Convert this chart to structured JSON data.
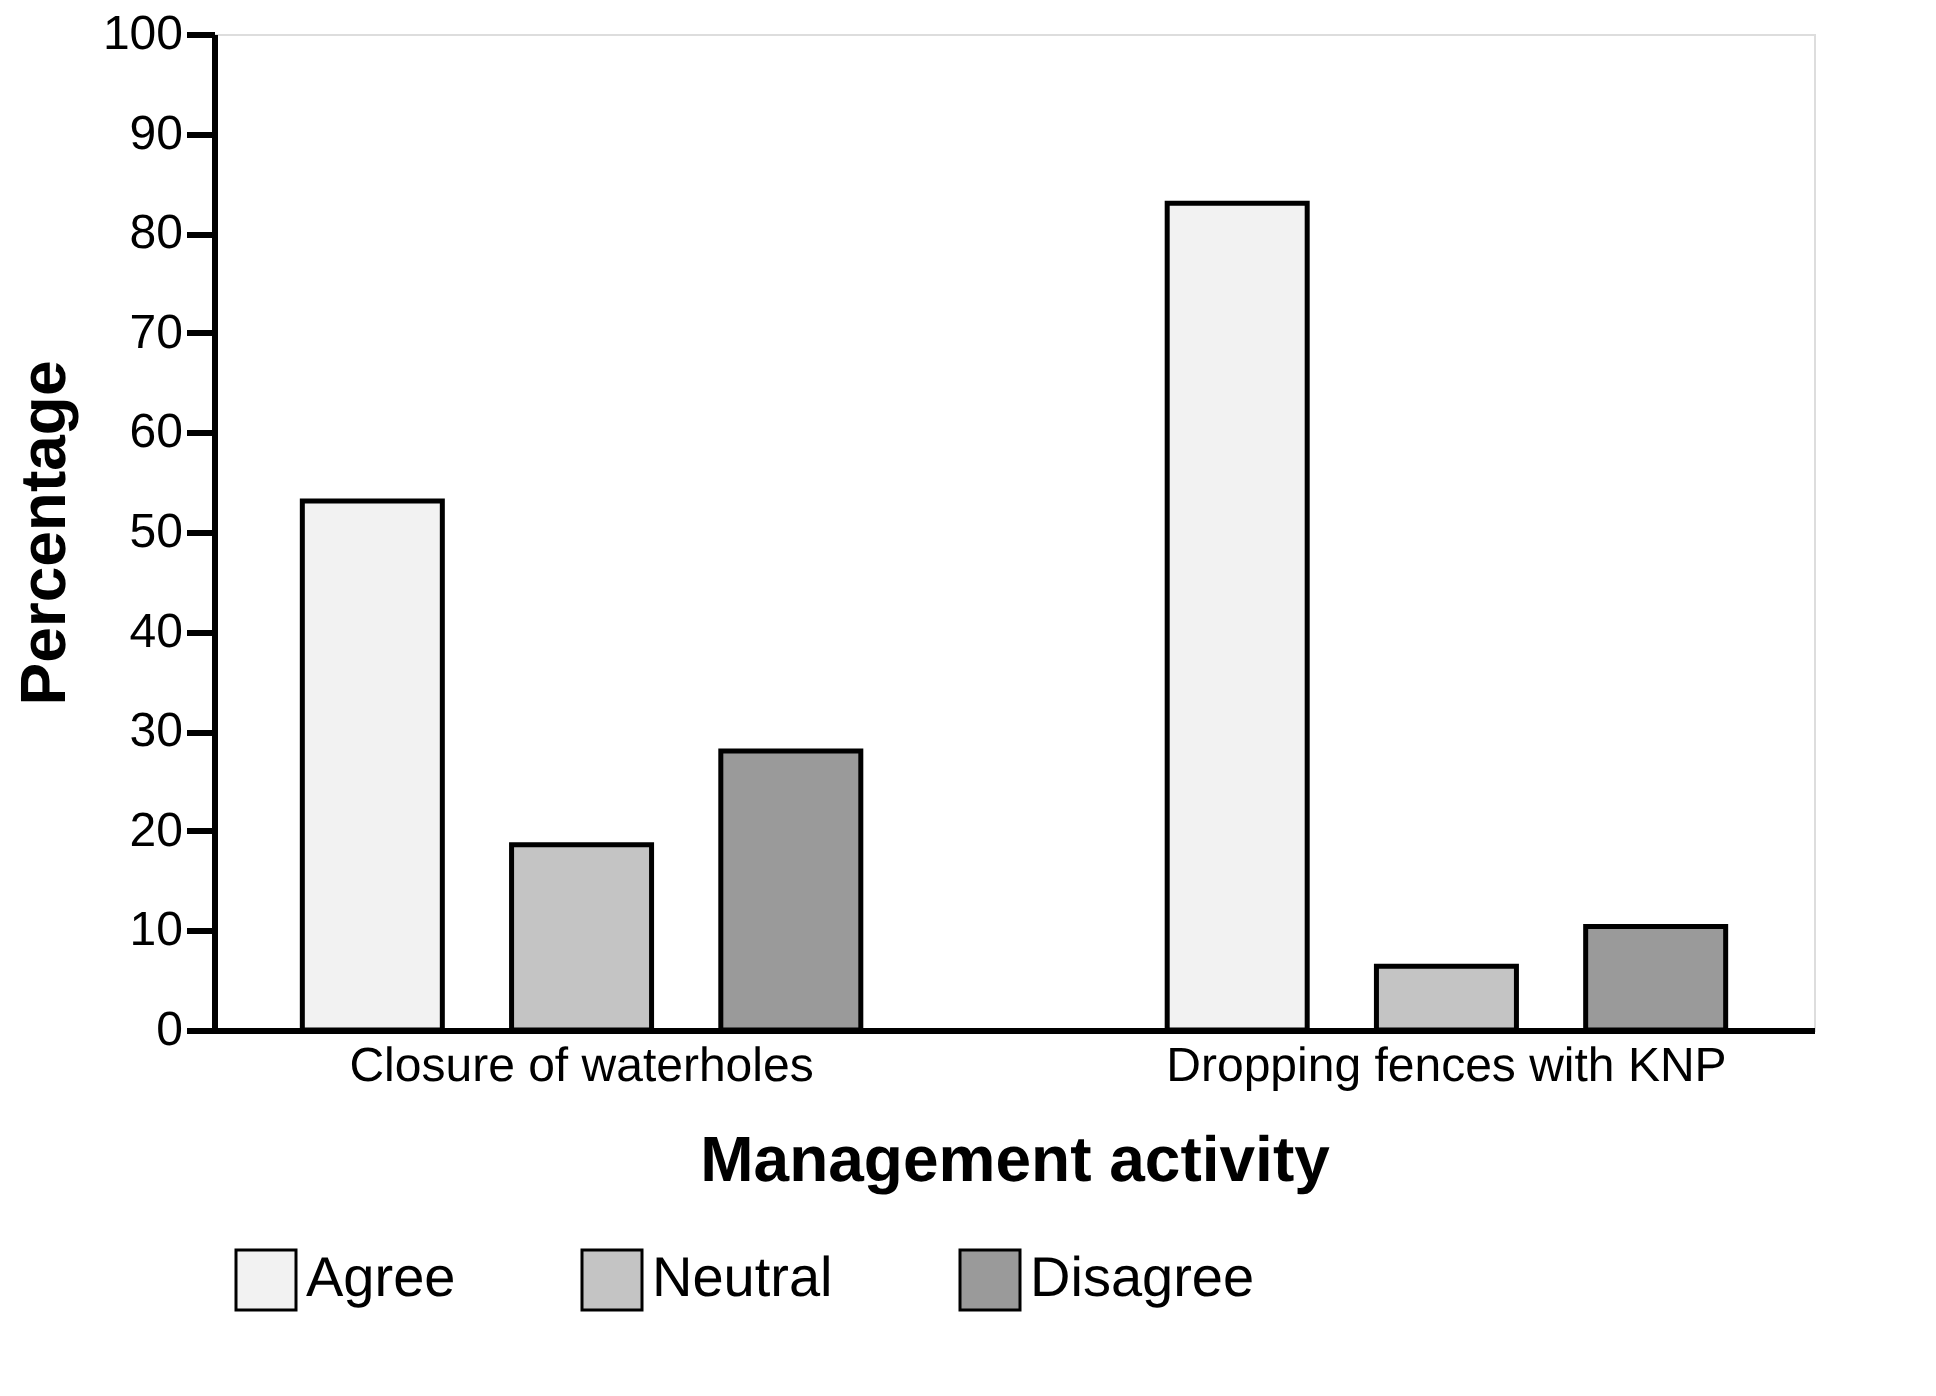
{
  "chart_data": {
    "type": "bar",
    "xlabel": "Management activity",
    "ylabel": "Percentage",
    "categories": [
      "Closure of waterholes",
      "Dropping fences with KNP"
    ],
    "series": [
      {
        "name": "Agree",
        "color": "#f2f2f2",
        "values": [
          53.1,
          83.0
        ]
      },
      {
        "name": "Neutral",
        "color": "#c4c4c4",
        "values": [
          18.6,
          6.4
        ]
      },
      {
        "name": "Disagree",
        "color": "#9a9a9a",
        "values": [
          28.0,
          10.4
        ]
      }
    ],
    "ylim": [
      0,
      100
    ],
    "yticks": [
      0,
      10,
      20,
      30,
      40,
      50,
      60,
      70,
      80,
      90,
      100
    ],
    "grid": false,
    "legend": "bottom"
  }
}
